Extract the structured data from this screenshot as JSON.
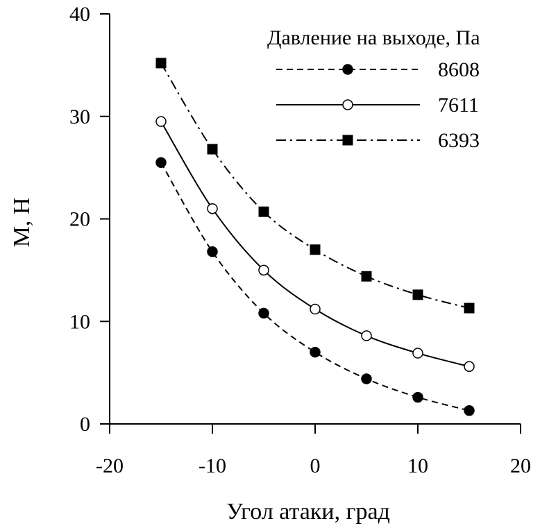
{
  "chart_data": {
    "type": "line",
    "xlabel": "Угол атаки, град",
    "ylabel": "M, Н",
    "xlim": [
      -20,
      20
    ],
    "ylim": [
      0,
      40
    ],
    "xticks": [
      "-20",
      "-10",
      "0",
      "10",
      "20"
    ],
    "yticks": [
      "0",
      "10",
      "20",
      "30",
      "40"
    ],
    "grid": false,
    "legend": {
      "title": "Давление на выходе, Па",
      "placement": "top-right"
    },
    "x": [
      -15,
      -10,
      -5,
      0,
      5,
      10,
      15
    ],
    "series": [
      {
        "name": "8608",
        "line_style": "dashed",
        "marker": "filled-circle",
        "values": [
          25.5,
          16.8,
          10.8,
          7.0,
          4.4,
          2.6,
          1.3
        ]
      },
      {
        "name": "7611",
        "line_style": "solid",
        "marker": "open-circle",
        "values": [
          29.5,
          21.0,
          15.0,
          11.2,
          8.6,
          6.9,
          5.6
        ]
      },
      {
        "name": "6393",
        "line_style": "dash-dot",
        "marker": "filled-square",
        "values": [
          35.2,
          26.8,
          20.7,
          17.0,
          14.4,
          12.6,
          11.3
        ]
      }
    ]
  }
}
